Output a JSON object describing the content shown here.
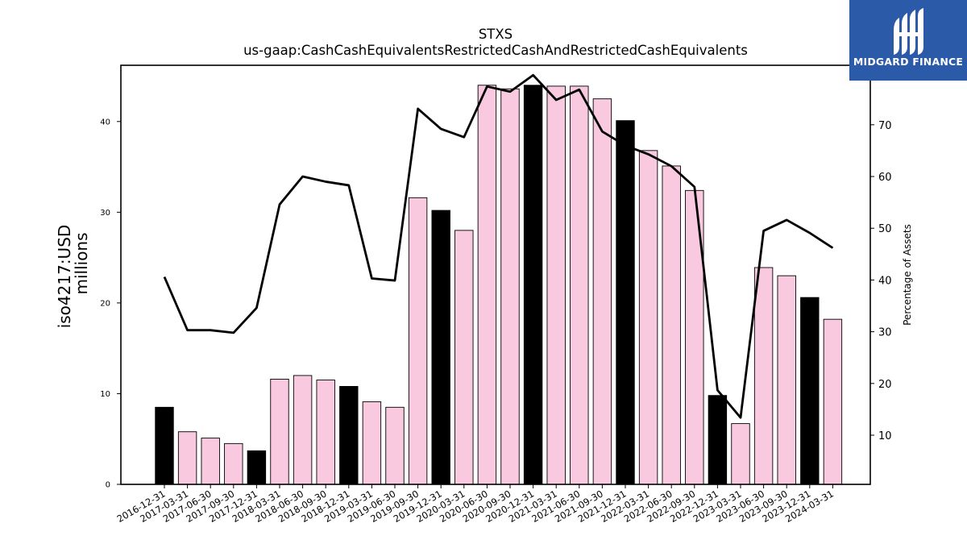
{
  "chart_data": {
    "type": "bar",
    "title": "STXS",
    "subtitle": "us-gaap:CashCashEquivalentsRestrictedCashAndRestrictedCashEquivalents",
    "ylabel_line1": "iso4217:USD",
    "ylabel_line2": "millions",
    "y2label": "Percentage of Assets",
    "ylim": [
      0,
      46.2
    ],
    "y2lim": [
      0.5,
      81.5
    ],
    "yticks": [
      0,
      10,
      20,
      30,
      40
    ],
    "y2ticks": [
      10,
      20,
      30,
      40,
      50,
      60,
      70,
      80
    ],
    "categories": [
      "2016-12-31",
      "2017-03-31",
      "2017-06-30",
      "2017-09-30",
      "2017-12-31",
      "2018-03-31",
      "2018-06-30",
      "2018-09-30",
      "2018-12-31",
      "2019-03-31",
      "2019-06-30",
      "2019-09-30",
      "2019-12-31",
      "2020-03-31",
      "2020-06-30",
      "2020-09-30",
      "2020-12-31",
      "2021-03-31",
      "2021-06-30",
      "2021-09-30",
      "2021-12-31",
      "2022-03-31",
      "2022-06-30",
      "2022-09-30",
      "2022-12-31",
      "2023-03-31",
      "2023-06-30",
      "2023-09-30",
      "2023-12-31",
      "2024-03-31"
    ],
    "series": [
      {
        "kind": "bar",
        "values": [
          8.5,
          5.8,
          5.1,
          4.5,
          3.7,
          11.6,
          12.0,
          11.5,
          10.8,
          9.1,
          8.5,
          31.6,
          30.2,
          28.0,
          44.0,
          43.6,
          44.0,
          43.9,
          43.9,
          42.5,
          40.1,
          36.8,
          35.1,
          32.4,
          9.8,
          6.7,
          23.9,
          23.0,
          20.6,
          18.2
        ],
        "colors": [
          "#000000",
          "#f9c9e0",
          "#f9c9e0",
          "#f9c9e0",
          "#000000",
          "#f9c9e0",
          "#f9c9e0",
          "#f9c9e0",
          "#000000",
          "#f9c9e0",
          "#f9c9e0",
          "#f9c9e0",
          "#000000",
          "#f9c9e0",
          "#f9c9e0",
          "#f9c9e0",
          "#000000",
          "#f9c9e0",
          "#f9c9e0",
          "#f9c9e0",
          "#000000",
          "#f9c9e0",
          "#f9c9e0",
          "#f9c9e0",
          "#000000",
          "#f9c9e0",
          "#f9c9e0",
          "#f9c9e0",
          "#000000",
          "#f9c9e0"
        ]
      },
      {
        "kind": "line",
        "axis": "right",
        "color": "#000000",
        "values": [
          40.6,
          30.3,
          30.3,
          29.8,
          34.6,
          54.6,
          60.0,
          59.0,
          58.3,
          40.3,
          39.9,
          73.1,
          69.2,
          67.6,
          77.4,
          76.4,
          79.6,
          74.8,
          76.8,
          68.7,
          66.0,
          64.3,
          62.0,
          58.0,
          18.7,
          13.4,
          49.5,
          51.6,
          49.1,
          46.2
        ]
      }
    ],
    "grid": false,
    "legend": "none"
  },
  "logo": {
    "text": "MIDGARD FINANCE",
    "bg_color": "#2a5aa8",
    "icon": "midgard-logo-icon"
  }
}
